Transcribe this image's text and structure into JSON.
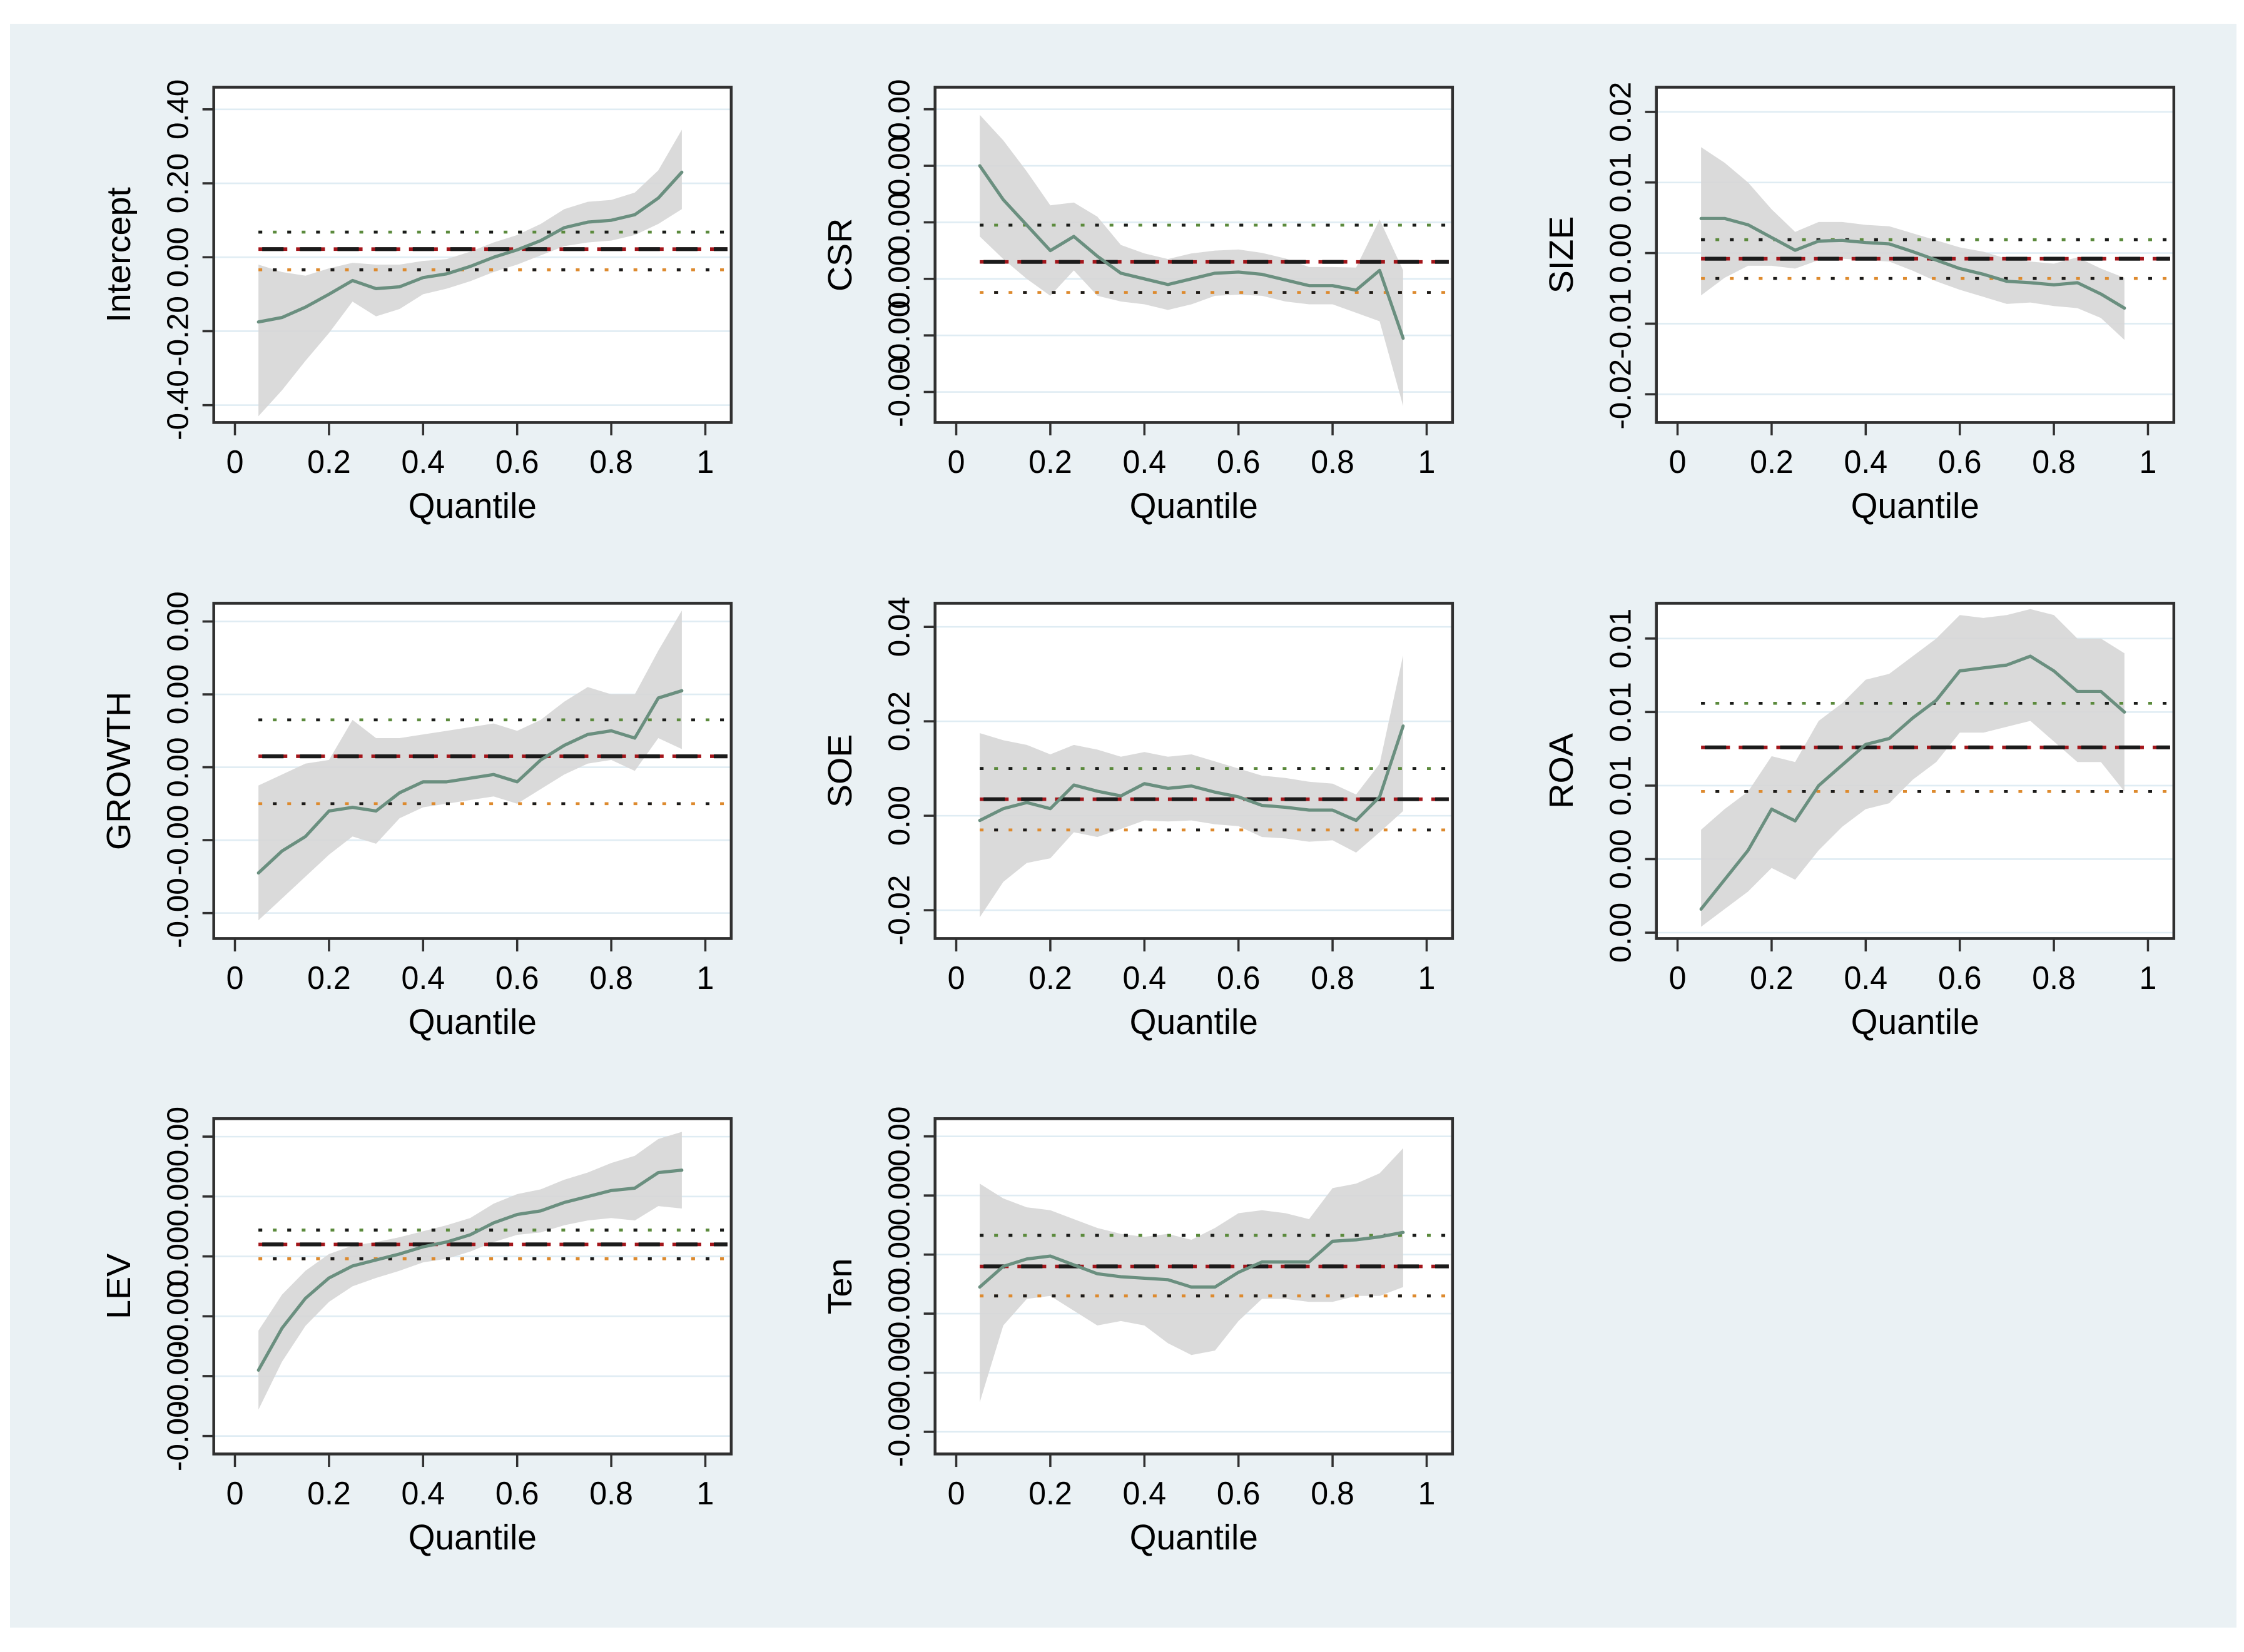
{
  "figure": {
    "type": "quantile-regression-coefficient-plots",
    "xlabel": "Quantile",
    "background_color": "#eaf1f4",
    "plot_background": "#ffffff",
    "gridline_color": "#dfecf3",
    "band_color": "#d6d6d6",
    "coef_line_color": "#6a8f7f",
    "ols_dash_black": "#1b1b1b",
    "ols_dash_red": "#a3161b",
    "ci_dot_green": "#5b8a3c",
    "ci_dot_orange": "#dd8a2e",
    "axis_color": "#303030",
    "text_color": "#000000",
    "grid_layout": "3x3, last cell empty",
    "quantiles": [
      0.05,
      0.1,
      0.15,
      0.2,
      0.25,
      0.3,
      0.35,
      0.4,
      0.45,
      0.5,
      0.55,
      0.6,
      0.65,
      0.7,
      0.75,
      0.8,
      0.85,
      0.9,
      0.95
    ],
    "xticks": [
      0,
      0.2,
      0.4,
      0.6,
      0.8,
      1
    ],
    "xtick_labels": [
      "0",
      "0.2",
      "0.4",
      "0.6",
      "0.8",
      "1"
    ]
  },
  "chart_data": [
    {
      "type": "line",
      "ylabel": "Intercept",
      "xlabel": "Quantile",
      "ylim": [
        -0.447,
        0.46
      ],
      "yticks": [
        0.4,
        0.2,
        0.0,
        -0.2,
        -0.4
      ],
      "ytick_labels": [
        "0.40",
        "0.20",
        "0.00",
        "-0.20",
        "-0.40"
      ],
      "ols_estimate": 0.022,
      "ols_ci_upper": 0.068,
      "ols_ci_lower": -0.034,
      "coef": [
        -0.175,
        -0.163,
        -0.135,
        -0.1,
        -0.063,
        -0.085,
        -0.08,
        -0.055,
        -0.045,
        -0.025,
        0.0,
        0.02,
        0.045,
        0.08,
        0.095,
        0.1,
        0.115,
        0.16,
        0.23
      ],
      "ci_lower": [
        -0.43,
        -0.36,
        -0.28,
        -0.205,
        -0.12,
        -0.16,
        -0.14,
        -0.1,
        -0.085,
        -0.065,
        -0.04,
        -0.02,
        0.005,
        0.03,
        0.04,
        0.045,
        0.06,
        0.09,
        0.13
      ],
      "ci_upper": [
        -0.02,
        -0.04,
        -0.05,
        -0.03,
        -0.015,
        -0.02,
        -0.02,
        -0.01,
        -0.005,
        0.015,
        0.04,
        0.06,
        0.09,
        0.13,
        0.15,
        0.155,
        0.175,
        0.235,
        0.345
      ]
    },
    {
      "type": "line",
      "ylabel": "CSR",
      "xlabel": "Quantile",
      "ylim": [
        -0.00254,
        0.00339
      ],
      "yticks": [
        0.003,
        0.002,
        0.001,
        0.0,
        -0.001,
        -0.002
      ],
      "ytick_labels": [
        "0.00",
        "0.00",
        "0.00",
        "0.00",
        "-0.00",
        "-0.00"
      ],
      "ols_estimate": 0.0003,
      "ols_ci_upper": 0.00095,
      "ols_ci_lower": -0.00024,
      "coef": [
        0.002,
        0.0014,
        0.00095,
        0.0005,
        0.00075,
        0.0004,
        0.0001,
        0.0,
        -0.0001,
        0.0,
        0.0001,
        0.00012,
        8e-05,
        -2e-05,
        -0.00012,
        -0.00012,
        -0.0002,
        0.00015,
        -0.00105
      ],
      "ci_lower": [
        0.00075,
        0.00035,
        0.0,
        -0.0003,
        0.00015,
        -0.0003,
        -0.0004,
        -0.00045,
        -0.00055,
        -0.00045,
        -0.0003,
        -0.00028,
        -0.0003,
        -0.0004,
        -0.00045,
        -0.00045,
        -0.0006,
        -0.00075,
        -0.00225
      ],
      "ci_upper": [
        0.0029,
        0.00245,
        0.0019,
        0.0013,
        0.00135,
        0.0011,
        0.0006,
        0.00045,
        0.00035,
        0.00045,
        0.0005,
        0.00052,
        0.00046,
        0.00036,
        0.00021,
        0.00021,
        0.0002,
        0.00105,
        0.00015
      ]
    },
    {
      "type": "line",
      "ylabel": "SIZE",
      "xlabel": "Quantile",
      "ylim": [
        -0.024,
        0.0235
      ],
      "yticks": [
        0.02,
        0.01,
        0.0,
        -0.01,
        -0.02
      ],
      "ytick_labels": [
        "0.02",
        "0.01",
        "0.00",
        "-0.01",
        "-0.02"
      ],
      "ols_estimate": -0.0008,
      "ols_ci_upper": 0.0019,
      "ols_ci_lower": -0.0036,
      "coef": [
        0.0049,
        0.0049,
        0.004,
        0.0022,
        0.0004,
        0.0017,
        0.0018,
        0.0015,
        0.0013,
        0.0002,
        -0.001,
        -0.0022,
        -0.003,
        -0.004,
        -0.0042,
        -0.0045,
        -0.0042,
        -0.0058,
        -0.0078
      ],
      "ci_lower": [
        -0.006,
        -0.0035,
        -0.0018,
        -0.0018,
        -0.0022,
        -0.001,
        -0.0008,
        -0.001,
        -0.0012,
        -0.0025,
        -0.004,
        -0.0052,
        -0.0062,
        -0.0072,
        -0.007,
        -0.0075,
        -0.0078,
        -0.0092,
        -0.0123
      ],
      "ci_upper": [
        0.015,
        0.0128,
        0.01,
        0.0062,
        0.003,
        0.0044,
        0.0044,
        0.004,
        0.0038,
        0.0028,
        0.0018,
        0.0008,
        0.0002,
        -0.0008,
        -0.0012,
        -0.0015,
        -0.0006,
        -0.0022,
        -0.0035
      ]
    },
    {
      "type": "line",
      "ylabel": "GROWTH",
      "xlabel": "Quantile",
      "ylim": [
        -0.00047,
        0.00045
      ],
      "yticks": [
        0.0004,
        0.0002,
        0.0,
        -0.0002,
        -0.0004
      ],
      "ytick_labels": [
        "0.00",
        "0.00",
        "0.00",
        "-0.00",
        "-0.00"
      ],
      "ols_estimate": 3e-05,
      "ols_ci_upper": 0.00013,
      "ols_ci_lower": -0.0001,
      "coef": [
        -0.00029,
        -0.00023,
        -0.00019,
        -0.00012,
        -0.00011,
        -0.00012,
        -7e-05,
        -4e-05,
        -4e-05,
        -3e-05,
        -2e-05,
        -4e-05,
        2e-05,
        6e-05,
        9e-05,
        0.0001,
        8e-05,
        0.00019,
        0.00021
      ],
      "ci_lower": [
        -0.00042,
        -0.00036,
        -0.0003,
        -0.00024,
        -0.00019,
        -0.00021,
        -0.00014,
        -0.00011,
        -0.0001,
        -9e-05,
        -8e-05,
        -0.0001,
        -6e-05,
        -2e-05,
        1e-05,
        2e-05,
        -1e-05,
        8e-05,
        5e-05
      ],
      "ci_upper": [
        -5e-05,
        -2e-05,
        1e-05,
        2e-05,
        0.00013,
        8e-05,
        8e-05,
        9e-05,
        0.0001,
        0.00011,
        0.00012,
        0.0001,
        0.00013,
        0.00018,
        0.00022,
        0.0002,
        0.0002,
        0.00032,
        0.00043
      ]
    },
    {
      "type": "line",
      "ylabel": "SOE",
      "xlabel": "Quantile",
      "ylim": [
        -0.026,
        0.045
      ],
      "yticks": [
        0.04,
        0.02,
        0.0,
        -0.02
      ],
      "ytick_labels": [
        "0.04",
        "0.02",
        "0.00",
        "-0.02"
      ],
      "ols_estimate": 0.0035,
      "ols_ci_upper": 0.01,
      "ols_ci_lower": -0.003,
      "coef": [
        -0.001,
        0.0015,
        0.0028,
        0.0015,
        0.0065,
        0.0052,
        0.0042,
        0.0068,
        0.0058,
        0.0063,
        0.005,
        0.004,
        0.0022,
        0.0018,
        0.0012,
        0.0012,
        -0.001,
        0.004,
        0.019
      ],
      "ci_lower": [
        -0.0215,
        -0.014,
        -0.01,
        -0.009,
        -0.0035,
        -0.0045,
        -0.0028,
        -0.001,
        -0.0012,
        -0.001,
        -0.0018,
        -0.0022,
        -0.0045,
        -0.0048,
        -0.0055,
        -0.0052,
        -0.0078,
        -0.0035,
        0.001
      ],
      "ci_upper": [
        0.0175,
        0.016,
        0.015,
        0.013,
        0.015,
        0.014,
        0.0125,
        0.0135,
        0.0125,
        0.013,
        0.0115,
        0.01,
        0.0085,
        0.008,
        0.0072,
        0.0068,
        0.0045,
        0.011,
        0.034
      ]
    },
    {
      "type": "line",
      "ylabel": "ROA",
      "xlabel": "Quantile",
      "ylim": [
        -0.0002,
        0.0112
      ],
      "yticks": [
        0.01,
        0.0075,
        0.005,
        0.0025,
        0.0
      ],
      "ytick_labels": [
        "0.01",
        "0.01",
        "0.01",
        "0.00",
        "0.00"
      ],
      "ols_estimate": 0.0063,
      "ols_ci_upper": 0.0078,
      "ols_ci_lower": 0.0048,
      "coef": [
        0.0008,
        0.0018,
        0.0028,
        0.0042,
        0.0038,
        0.005,
        0.0057,
        0.0064,
        0.0066,
        0.0073,
        0.0079,
        0.0089,
        0.009,
        0.0091,
        0.0094,
        0.0089,
        0.0082,
        0.0082,
        0.0075
      ],
      "ci_lower": [
        0.0002,
        0.0008,
        0.0014,
        0.0022,
        0.0018,
        0.0028,
        0.0036,
        0.0042,
        0.0044,
        0.0052,
        0.0058,
        0.0068,
        0.0068,
        0.007,
        0.0072,
        0.0065,
        0.0058,
        0.0058,
        0.0048
      ],
      "ci_upper": [
        0.0035,
        0.0042,
        0.0048,
        0.006,
        0.0058,
        0.0072,
        0.0078,
        0.0086,
        0.0088,
        0.0094,
        0.01,
        0.0108,
        0.0107,
        0.0108,
        0.011,
        0.0108,
        0.01,
        0.01,
        0.0095
      ]
    },
    {
      "type": "line",
      "ylabel": "LEV",
      "xlabel": "Quantile",
      "ylim": [
        -0.00165,
        0.00115
      ],
      "yticks": [
        0.001,
        0.0005,
        0.0,
        -0.0005,
        -0.001,
        -0.0015
      ],
      "ytick_labels": [
        "0.00",
        "0.00",
        "0.00",
        "-0.00",
        "-0.00",
        "-0.00"
      ],
      "ols_estimate": 0.0001,
      "ols_ci_upper": 0.00022,
      "ols_ci_lower": -2e-05,
      "coef": [
        -0.00095,
        -0.0006,
        -0.00035,
        -0.00018,
        -8e-05,
        -3e-05,
        2e-05,
        8e-05,
        0.00012,
        0.00018,
        0.00028,
        0.00035,
        0.00038,
        0.00045,
        0.0005,
        0.00055,
        0.00057,
        0.0007,
        0.00072
      ],
      "ci_lower": [
        -0.00128,
        -0.00088,
        -0.00058,
        -0.00038,
        -0.00025,
        -0.00018,
        -0.00012,
        -5e-05,
        -2e-05,
        4e-05,
        0.00012,
        0.00018,
        0.0002,
        0.00026,
        0.0003,
        0.00032,
        0.0003,
        0.00042,
        0.0004
      ],
      "ci_upper": [
        -0.00062,
        -0.00032,
        -0.00012,
        2e-05,
        9e-05,
        0.00012,
        0.00016,
        0.00021,
        0.00026,
        0.00032,
        0.00044,
        0.00052,
        0.00056,
        0.00064,
        0.0007,
        0.00078,
        0.00084,
        0.00098,
        0.00104
      ]
    },
    {
      "type": "line",
      "ylabel": "Ten",
      "xlabel": "Quantile",
      "ylim": [
        -0.00135,
        0.00092
      ],
      "yticks": [
        0.0008,
        0.0004,
        0.0,
        -0.0004,
        -0.0008,
        -0.0012
      ],
      "ytick_labels": [
        "0.00",
        "0.00",
        "0.00",
        "-0.00",
        "-0.00",
        "-0.00"
      ],
      "ols_estimate": -8e-05,
      "ols_ci_upper": 0.00013,
      "ols_ci_lower": -0.00028,
      "coef": [
        -0.00022,
        -8e-05,
        -3e-05,
        -1e-05,
        -7e-05,
        -0.00013,
        -0.00015,
        -0.00016,
        -0.00017,
        -0.00022,
        -0.00022,
        -0.00012,
        -5e-05,
        -5e-05,
        -5e-05,
        9e-05,
        0.0001,
        0.00012,
        0.00015
      ],
      "ci_lower": [
        -0.001,
        -0.00048,
        -0.0003,
        -0.00028,
        -0.00038,
        -0.00048,
        -0.00045,
        -0.00048,
        -0.0006,
        -0.00068,
        -0.00065,
        -0.00045,
        -0.0003,
        -0.0003,
        -0.00032,
        -0.00032,
        -0.00028,
        -0.00028,
        -0.00022
      ],
      "ci_upper": [
        0.00048,
        0.00038,
        0.00032,
        0.0003,
        0.00024,
        0.00018,
        0.00014,
        0.00012,
        0.00014,
        0.0001,
        0.00018,
        0.00028,
        0.0003,
        0.00028,
        0.00024,
        0.00045,
        0.00048,
        0.00055,
        0.00072
      ]
    }
  ]
}
